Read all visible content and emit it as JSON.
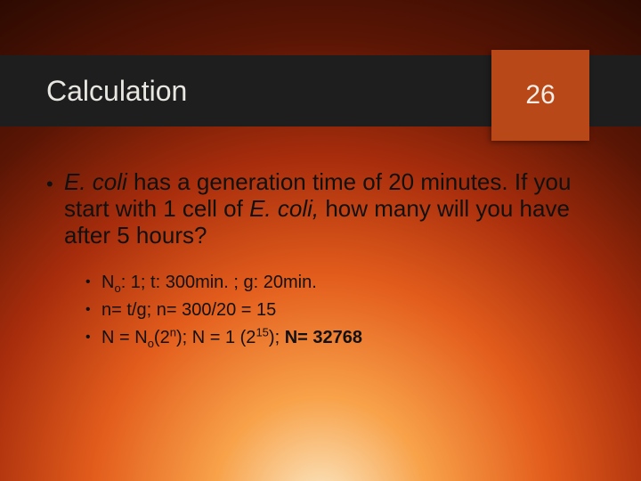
{
  "colors": {
    "title_bar_bg": "#1e1e1e",
    "title_text": "#e8e6e0",
    "page_box_bg": "#b84818",
    "page_num_text": "#f5eee6",
    "body_text": "#111111",
    "bg_gradient": [
      "#fbe9c6",
      "#f8a24a",
      "#e35d1c",
      "#a82d0c",
      "#5a1504",
      "#2c0a02"
    ]
  },
  "title": "Calculation",
  "page_number": "26",
  "main_bullet": {
    "prefix_italic": "E. coli",
    "middle": " has a generation time of 20 minutes. If you start with 1 cell of ",
    "mid_italic": "E. coli,",
    "suffix": " how many will you have after 5 hours?"
  },
  "sub_bullets": {
    "item1": {
      "a": "N",
      "a_sub": "o",
      "b": ": 1; t: 300min. ; g: 20min."
    },
    "item2": "n= t/g; n= 300/20 = 15",
    "item3": {
      "a": "N = N",
      "a_sub": "o",
      "b": "(2",
      "b_sup": "n",
      "c": "); N = 1 (2",
      "c_sup": "15",
      "d": "); ",
      "bold": "N= 32768"
    }
  },
  "typography": {
    "title_fontsize": 32,
    "pagenum_fontsize": 30,
    "main_bullet_fontsize": 26,
    "sub_bullet_fontsize": 20
  }
}
